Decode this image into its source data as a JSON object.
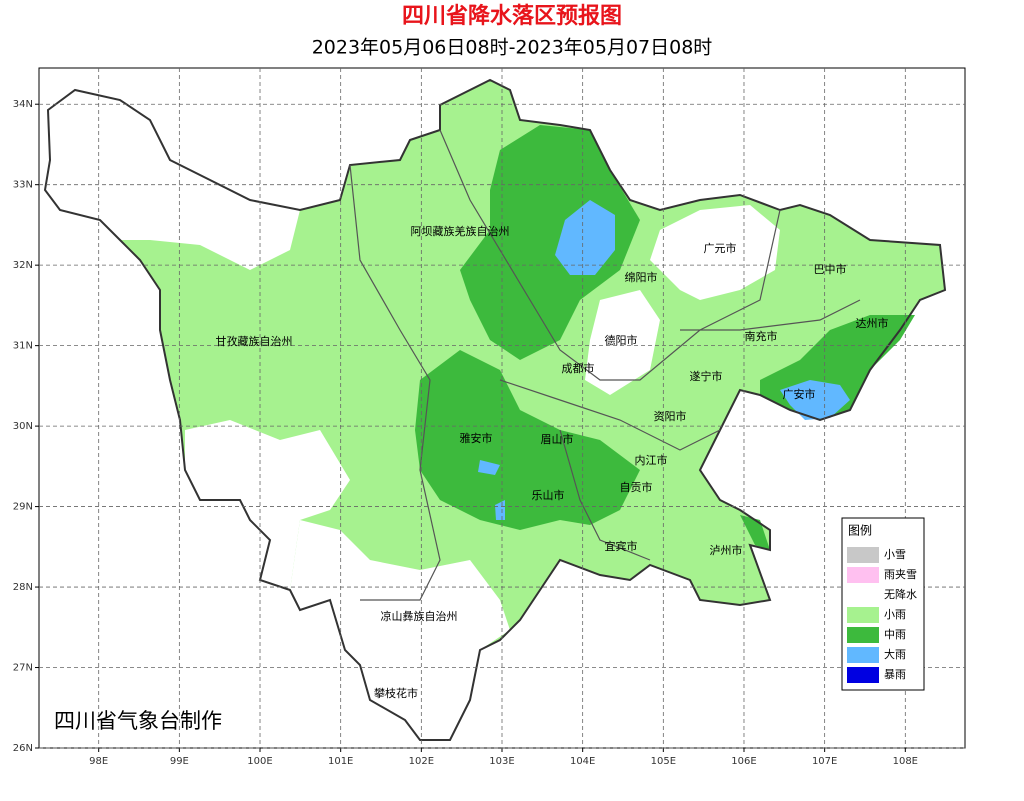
{
  "header": {
    "title": "四川省降水落区预报图",
    "subtitle": "2023年05月06日08时-2023年05月07日08时"
  },
  "map": {
    "xlim": [
      97.26,
      108.74
    ],
    "ylim": [
      26,
      34.45
    ],
    "xticks": [
      {
        "value": 98,
        "label": "98E"
      },
      {
        "value": 99,
        "label": "99E"
      },
      {
        "value": 100,
        "label": "100E"
      },
      {
        "value": 101,
        "label": "101E"
      },
      {
        "value": 102,
        "label": "102E"
      },
      {
        "value": 103,
        "label": "103E"
      },
      {
        "value": 104,
        "label": "104E"
      },
      {
        "value": 105,
        "label": "105E"
      },
      {
        "value": 106,
        "label": "106E"
      },
      {
        "value": 107,
        "label": "107E"
      },
      {
        "value": 108,
        "label": "108E"
      }
    ],
    "yticks": [
      {
        "value": 26,
        "label": "26N"
      },
      {
        "value": 27,
        "label": "27N"
      },
      {
        "value": 28,
        "label": "28N"
      },
      {
        "value": 29,
        "label": "29N"
      },
      {
        "value": 30,
        "label": "30N"
      },
      {
        "value": 31,
        "label": "31N"
      },
      {
        "value": 32,
        "label": "32N"
      },
      {
        "value": 33,
        "label": "33N"
      },
      {
        "value": 34,
        "label": "34N"
      }
    ],
    "cities": [
      "阿坝藏族羌族自治州",
      "广元市",
      "巴中市",
      "绵阳市",
      "达州市",
      "甘孜藏族自治州",
      "德阳市",
      "南充市",
      "成都市",
      "遂宁市",
      "广安市",
      "资阳市",
      "雅安市",
      "眉山市",
      "内江市",
      "自贡市",
      "乐山市",
      "宜宾市",
      "泸州市",
      "凉山彝族自治州",
      "攀枝花市"
    ]
  },
  "legend": {
    "title": "图例",
    "items": [
      {
        "label": "小雪",
        "color": "#c8c8c8"
      },
      {
        "label": "雨夹雪",
        "color": "#ffc0f0"
      },
      {
        "label": "无降水",
        "color": "#ffffff"
      },
      {
        "label": "小雨",
        "color": "#a6f28f"
      },
      {
        "label": "中雨",
        "color": "#3dba3d"
      },
      {
        "label": "大雨",
        "color": "#61b8ff"
      },
      {
        "label": "暴雨",
        "color": "#0000e1"
      }
    ]
  },
  "credit": "四川省气象台制作"
}
